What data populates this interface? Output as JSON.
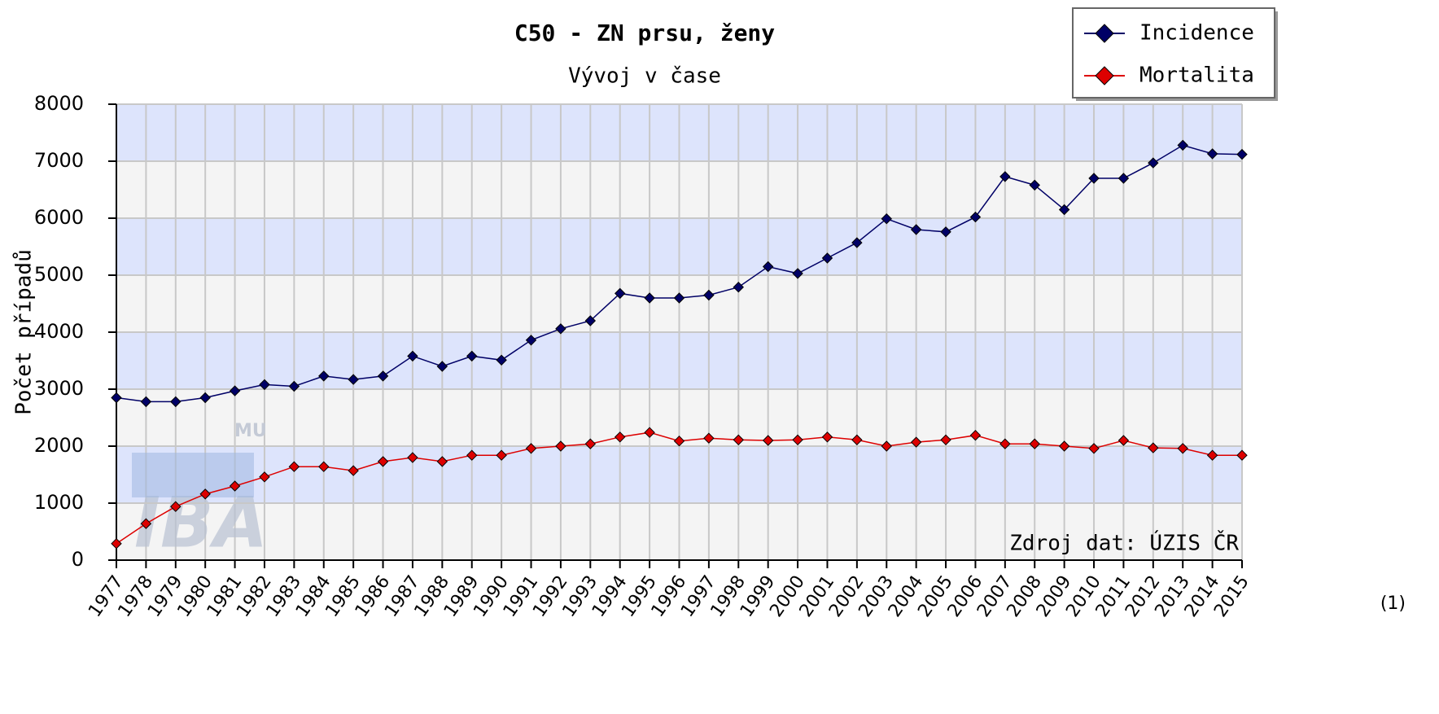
{
  "chart_data": {
    "type": "line",
    "title": "C50 - ZN prsu, ženy",
    "subtitle": "Vývoj v čase",
    "y_label": "Počet případů",
    "annotation": "Zdroj dat: ÚZIS ČR",
    "footnote": "(1)",
    "watermark": {
      "main": "IBA",
      "top": "MU"
    },
    "categories": [
      "1977",
      "1978",
      "1979",
      "1980",
      "1981",
      "1982",
      "1983",
      "1984",
      "1985",
      "1986",
      "1987",
      "1988",
      "1989",
      "1990",
      "1991",
      "1992",
      "1993",
      "1994",
      "1995",
      "1996",
      "1997",
      "1998",
      "1999",
      "2000",
      "2001",
      "2002",
      "2003",
      "2004",
      "2005",
      "2006",
      "2007",
      "2008",
      "2009",
      "2010",
      "2011",
      "2012",
      "2013",
      "2014",
      "2015"
    ],
    "series": [
      {
        "name": "Incidence",
        "color": "#000066",
        "values": [
          2850,
          2780,
          2780,
          2850,
          2970,
          3080,
          3050,
          3230,
          3170,
          3230,
          3580,
          3400,
          3580,
          3510,
          3860,
          4060,
          4200,
          4680,
          4600,
          4600,
          4650,
          4790,
          5150,
          5030,
          5300,
          5570,
          5990,
          5800,
          5760,
          6020,
          6730,
          6580,
          6150,
          6700,
          6700,
          6970,
          7280,
          7130,
          7120
        ]
      },
      {
        "name": "Mortalita",
        "color": "#dd0000",
        "values": [
          290,
          640,
          940,
          1160,
          1300,
          1460,
          1640,
          1640,
          1570,
          1730,
          1800,
          1730,
          1840,
          1840,
          1960,
          2000,
          2040,
          2160,
          2240,
          2090,
          2140,
          2110,
          2100,
          2110,
          2160,
          2110,
          2000,
          2070,
          2110,
          2190,
          2040,
          2040,
          2000,
          1960,
          2100,
          1970,
          1960,
          1840,
          1840
        ]
      }
    ],
    "ylim": [
      0,
      8000
    ],
    "yticks": [
      0,
      1000,
      2000,
      3000,
      4000,
      5000,
      6000,
      7000,
      8000
    ],
    "grid": true,
    "band_colors": [
      "#f4f4f4",
      "#dde4fc"
    ],
    "legend": "top-right"
  }
}
